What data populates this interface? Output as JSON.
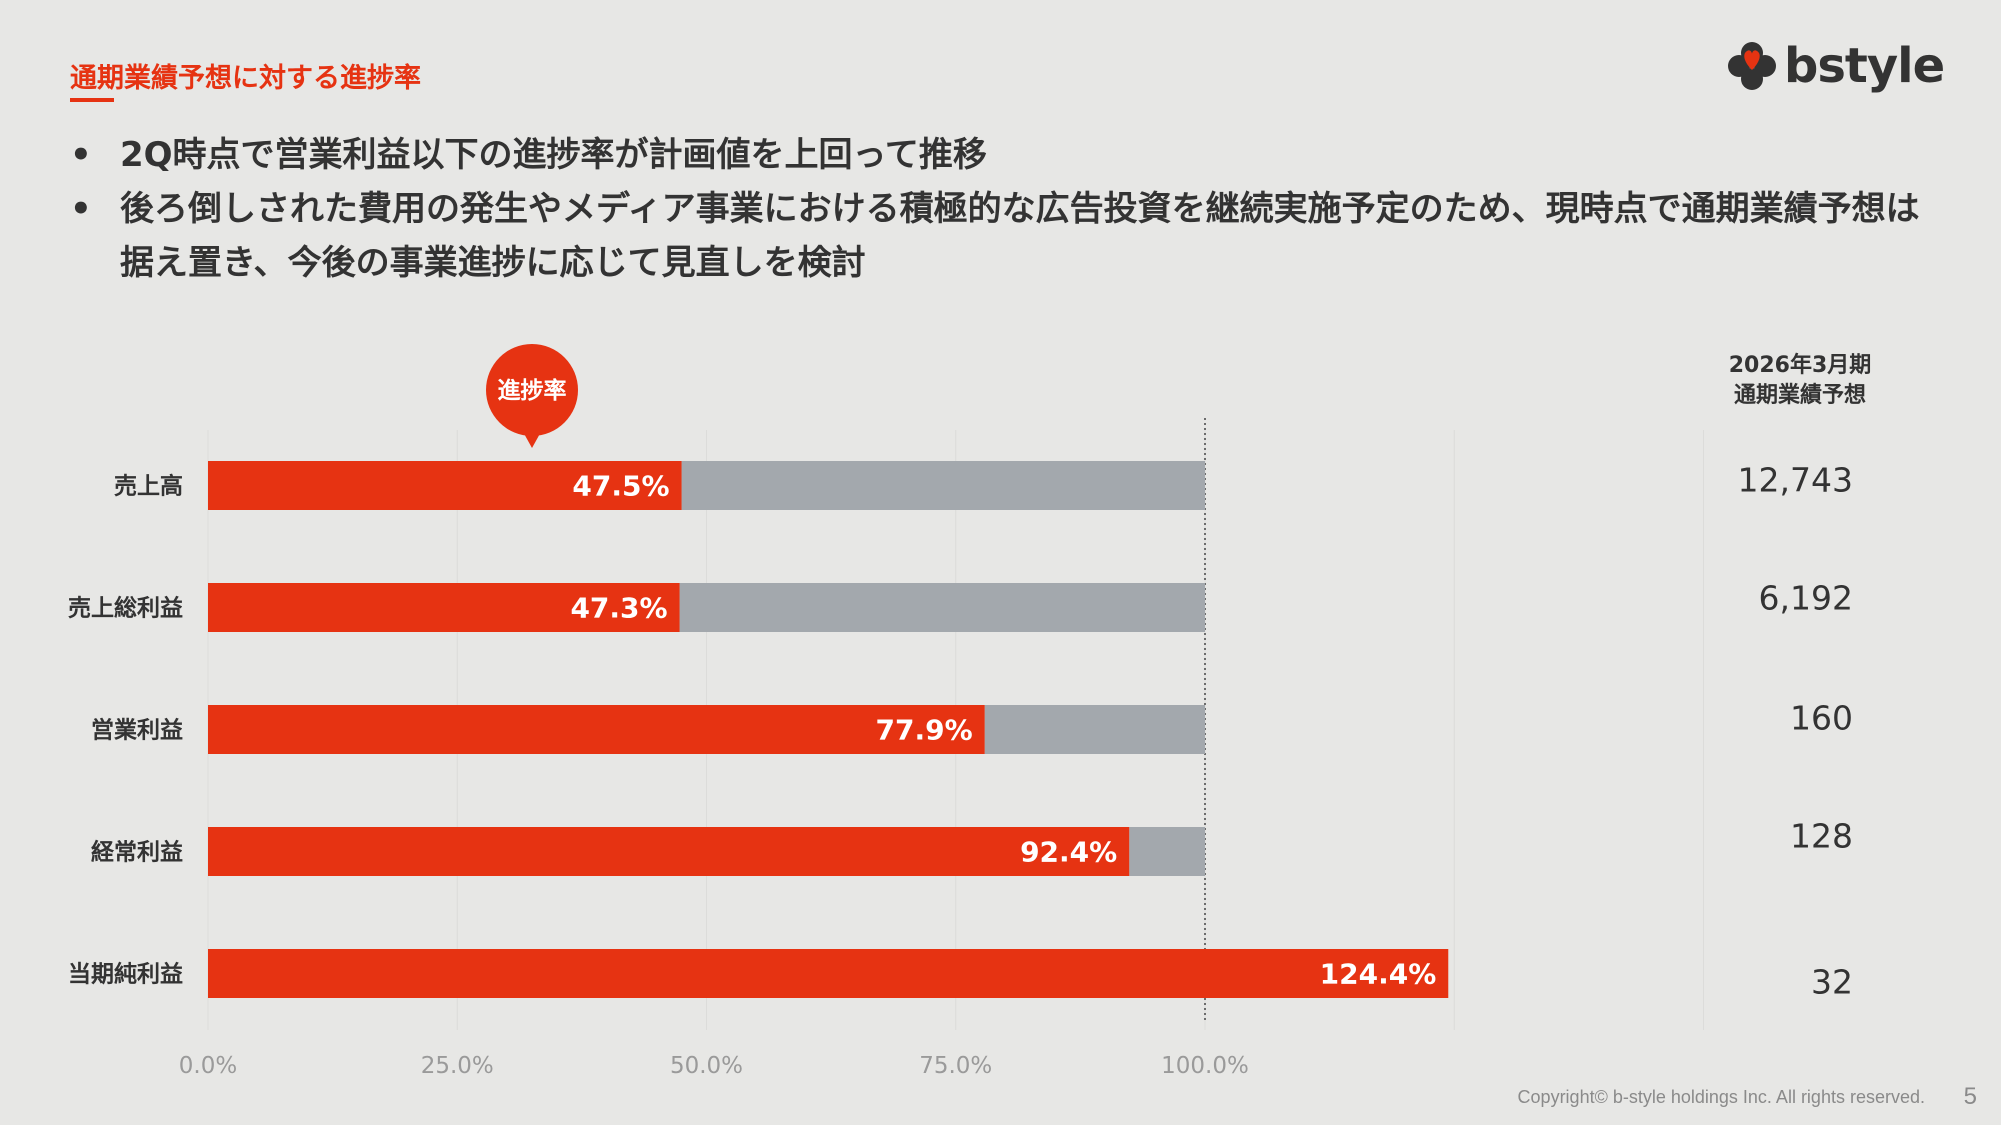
{
  "header": {
    "section_title": "通期業績予想に対する進捗率",
    "logo_text": "bstyle"
  },
  "bullets": [
    "2Q時点で営業利益以下の進捗率が計画値を上回って推移",
    "後ろ倒しされた費用の発生やメディア事業における積極的な広告投資を継続実施予定のため、現時点で通期業績予想は据え置き、今後の事業進捗に応じて見直しを検討"
  ],
  "callout_label": "進捗率",
  "forecast_header": [
    "2026年3月期",
    "通期業績予想"
  ],
  "footer": {
    "copyright": "Copyright© b-style holdings Inc. All rights reserved.",
    "page_number": "5"
  },
  "colors": {
    "accent": "#e63312",
    "remainder": "#a3a8ad",
    "background": "#e7e7e5"
  },
  "chart_data": {
    "type": "bar",
    "orientation": "horizontal",
    "categories": [
      "売上高",
      "売上総利益",
      "営業利益",
      "経常利益",
      "当期純利益"
    ],
    "series": [
      {
        "values": [
          47.5,
          47.3,
          77.9,
          92.4,
          124.4
        ]
      }
    ],
    "value_labels": [
      "47.5%",
      "47.3%",
      "77.9%",
      "92.4%",
      "124.4%"
    ],
    "forecast_values": [
      "12,743",
      "6,192",
      "160",
      "128",
      "32"
    ],
    "xlim": [
      0,
      125
    ],
    "xticks": [
      0,
      25,
      50,
      75,
      100
    ],
    "xtick_labels": [
      "0.0%",
      "25.0%",
      "50.0%",
      "75.0%",
      "100.0%"
    ],
    "reference_line": 100,
    "remainder_to": 100,
    "grid": true
  }
}
